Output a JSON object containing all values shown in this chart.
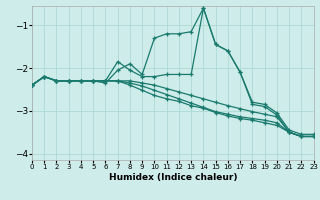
{
  "xlabel": "Humidex (Indice chaleur)",
  "background_color": "#ceecea",
  "grid_color": "#aed8d4",
  "line_color": "#1a7a6e",
  "x": [
    0,
    1,
    2,
    3,
    4,
    5,
    6,
    7,
    8,
    9,
    10,
    11,
    12,
    13,
    14,
    15,
    16,
    17,
    18,
    19,
    20,
    21,
    22,
    23
  ],
  "series": [
    [
      -2.4,
      -2.2,
      -2.3,
      -2.3,
      -2.3,
      -2.3,
      -2.35,
      -2.05,
      -1.9,
      -2.15,
      -1.3,
      -1.2,
      -1.2,
      -1.15,
      -0.6,
      -1.45,
      -1.6,
      -2.1,
      -2.8,
      -2.85,
      -3.05,
      -3.45,
      -3.55,
      -3.55
    ],
    [
      -2.4,
      -2.2,
      -2.3,
      -2.3,
      -2.3,
      -2.3,
      -2.3,
      -1.85,
      -2.05,
      -2.2,
      -2.2,
      -2.15,
      -2.15,
      -2.15,
      -0.6,
      -1.45,
      -1.6,
      -2.1,
      -2.85,
      -2.9,
      -3.1,
      -3.5,
      -3.6,
      -3.6
    ],
    [
      -2.4,
      -2.2,
      -2.3,
      -2.3,
      -2.3,
      -2.3,
      -2.3,
      -2.3,
      -2.3,
      -2.35,
      -2.4,
      -2.48,
      -2.56,
      -2.64,
      -2.72,
      -2.8,
      -2.88,
      -2.95,
      -3.02,
      -3.08,
      -3.14,
      -3.5,
      -3.6,
      -3.6
    ],
    [
      -2.4,
      -2.2,
      -2.3,
      -2.3,
      -2.3,
      -2.3,
      -2.3,
      -2.3,
      -2.35,
      -2.42,
      -2.52,
      -2.62,
      -2.72,
      -2.82,
      -2.92,
      -3.02,
      -3.08,
      -3.14,
      -3.18,
      -3.22,
      -3.28,
      -3.5,
      -3.6,
      -3.6
    ],
    [
      -2.4,
      -2.2,
      -2.3,
      -2.3,
      -2.3,
      -2.3,
      -2.3,
      -2.3,
      -2.4,
      -2.52,
      -2.64,
      -2.72,
      -2.78,
      -2.88,
      -2.94,
      -3.04,
      -3.12,
      -3.18,
      -3.22,
      -3.28,
      -3.34,
      -3.5,
      -3.6,
      -3.6
    ]
  ],
  "xlim": [
    0,
    23
  ],
  "ylim": [
    -4.15,
    -0.55
  ],
  "yticks": [
    -4,
    -3,
    -2,
    -1
  ],
  "xticks": [
    0,
    1,
    2,
    3,
    4,
    5,
    6,
    7,
    8,
    9,
    10,
    11,
    12,
    13,
    14,
    15,
    16,
    17,
    18,
    19,
    20,
    21,
    22,
    23
  ]
}
